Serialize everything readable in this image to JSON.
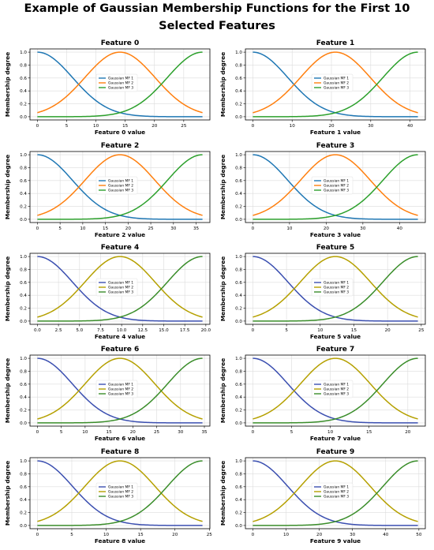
{
  "figure": {
    "title": "Example of Gaussian Membership Functions for the First 10 Selected Features"
  },
  "legend_labels": [
    "Gaussian MF 1",
    "Gaussian MF 2",
    "Gaussian MF 3"
  ],
  "chart_data": [
    {
      "type": "line",
      "title": "Feature 0",
      "xlabel": "Feature 0 value",
      "ylabel": "Membership degree",
      "xlim": [
        0,
        28.2
      ],
      "ylim": [
        0,
        1.0
      ],
      "xticks": [
        0,
        5,
        10,
        15,
        20,
        25
      ],
      "yticks": [
        0.0,
        0.2,
        0.4,
        0.6,
        0.8,
        1.0
      ],
      "grid": true,
      "legend": "center",
      "series": [
        {
          "name": "Gaussian MF 1",
          "mean": 0.0,
          "sigma": 6.0
        },
        {
          "name": "Gaussian MF 2",
          "mean": 14.1,
          "sigma": 6.0
        },
        {
          "name": "Gaussian MF 3",
          "mean": 28.2,
          "sigma": 6.0
        }
      ],
      "colors": [
        "#1f77b4",
        "#ff7f0e",
        "#2ca02c"
      ]
    },
    {
      "type": "line",
      "title": "Feature 1",
      "xlabel": "Feature 1 value",
      "ylabel": "Membership degree",
      "xlim": [
        0,
        42
      ],
      "ylim": [
        0,
        1.0
      ],
      "xticks": [
        0,
        10,
        20,
        30,
        40
      ],
      "yticks": [
        0.0,
        0.2,
        0.4,
        0.6,
        0.8,
        1.0
      ],
      "grid": true,
      "legend": "center",
      "series": [
        {
          "name": "Gaussian MF 1",
          "mean": 0.0,
          "sigma": 8.9
        },
        {
          "name": "Gaussian MF 2",
          "mean": 21.0,
          "sigma": 8.9
        },
        {
          "name": "Gaussian MF 3",
          "mean": 42.0,
          "sigma": 8.9
        }
      ],
      "colors": [
        "#1f77b4",
        "#ff7f0e",
        "#2ca02c"
      ]
    },
    {
      "type": "line",
      "title": "Feature 2",
      "xlabel": "Feature 2 value",
      "ylabel": "Membership degree",
      "xlim": [
        0,
        36.4
      ],
      "ylim": [
        0,
        1.0
      ],
      "xticks": [
        0,
        5,
        10,
        15,
        20,
        25,
        30,
        35
      ],
      "yticks": [
        0.0,
        0.2,
        0.4,
        0.6,
        0.8,
        1.0
      ],
      "grid": true,
      "legend": "center",
      "series": [
        {
          "name": "Gaussian MF 1",
          "mean": 0.0,
          "sigma": 7.7
        },
        {
          "name": "Gaussian MF 2",
          "mean": 18.2,
          "sigma": 7.7
        },
        {
          "name": "Gaussian MF 3",
          "mean": 36.4,
          "sigma": 7.7
        }
      ],
      "colors": [
        "#1f77b4",
        "#ff7f0e",
        "#2ca02c"
      ]
    },
    {
      "type": "line",
      "title": "Feature 3",
      "xlabel": "Feature 3 value",
      "ylabel": "Membership degree",
      "xlim": [
        0,
        45
      ],
      "ylim": [
        0,
        1.0
      ],
      "xticks": [
        0,
        10,
        20,
        30,
        40
      ],
      "yticks": [
        0.0,
        0.2,
        0.4,
        0.6,
        0.8,
        1.0
      ],
      "grid": true,
      "legend": "center",
      "series": [
        {
          "name": "Gaussian MF 1",
          "mean": 0.0,
          "sigma": 9.5
        },
        {
          "name": "Gaussian MF 2",
          "mean": 22.5,
          "sigma": 9.5
        },
        {
          "name": "Gaussian MF 3",
          "mean": 45.0,
          "sigma": 9.5
        }
      ],
      "colors": [
        "#1f77b4",
        "#ff7f0e",
        "#2ca02c"
      ]
    },
    {
      "type": "line",
      "title": "Feature 4",
      "xlabel": "Feature 4 value",
      "ylabel": "Membership degree",
      "xlim": [
        0,
        19.6
      ],
      "ylim": [
        0,
        1.0
      ],
      "xticks": [
        0.0,
        2.5,
        5.0,
        7.5,
        10.0,
        12.5,
        15.0,
        17.5,
        20.0
      ],
      "yticks": [
        0.0,
        0.2,
        0.4,
        0.6,
        0.8,
        1.0
      ],
      "grid": true,
      "legend": "center",
      "series": [
        {
          "name": "Gaussian MF 1",
          "mean": 0.0,
          "sigma": 4.15
        },
        {
          "name": "Gaussian MF 2",
          "mean": 9.8,
          "sigma": 4.15
        },
        {
          "name": "Gaussian MF 3",
          "mean": 19.6,
          "sigma": 4.15
        }
      ],
      "colors": [
        "#3b4fb0",
        "#b5a000",
        "#3a8d2a"
      ]
    },
    {
      "type": "line",
      "title": "Feature 5",
      "xlabel": "Feature 5 value",
      "ylabel": "Membership degree",
      "xlim": [
        0,
        24.5
      ],
      "ylim": [
        0,
        1.0
      ],
      "xticks": [
        0,
        5,
        10,
        15,
        20,
        25
      ],
      "yticks": [
        0.0,
        0.2,
        0.4,
        0.6,
        0.8,
        1.0
      ],
      "grid": true,
      "legend": "center",
      "series": [
        {
          "name": "Gaussian MF 1",
          "mean": 0.0,
          "sigma": 5.2
        },
        {
          "name": "Gaussian MF 2",
          "mean": 12.25,
          "sigma": 5.2
        },
        {
          "name": "Gaussian MF 3",
          "mean": 24.5,
          "sigma": 5.2
        }
      ],
      "colors": [
        "#3b4fb0",
        "#b5a000",
        "#3a8d2a"
      ]
    },
    {
      "type": "line",
      "title": "Feature 6",
      "xlabel": "Feature 6 value",
      "ylabel": "Membership degree",
      "xlim": [
        0,
        34.6
      ],
      "ylim": [
        0,
        1.0
      ],
      "xticks": [
        0,
        5,
        10,
        15,
        20,
        25,
        30,
        35
      ],
      "yticks": [
        0.0,
        0.2,
        0.4,
        0.6,
        0.8,
        1.0
      ],
      "grid": true,
      "legend": "center",
      "series": [
        {
          "name": "Gaussian MF 1",
          "mean": 0.0,
          "sigma": 7.3
        },
        {
          "name": "Gaussian MF 2",
          "mean": 17.3,
          "sigma": 7.3
        },
        {
          "name": "Gaussian MF 3",
          "mean": 34.6,
          "sigma": 7.3
        }
      ],
      "colors": [
        "#3b4fb0",
        "#b5a000",
        "#3a8d2a"
      ]
    },
    {
      "type": "line",
      "title": "Feature 7",
      "xlabel": "Feature 7 value",
      "ylabel": "Membership degree",
      "xlim": [
        0,
        21.3
      ],
      "ylim": [
        0,
        1.0
      ],
      "xticks": [
        0,
        5,
        10,
        15,
        20
      ],
      "yticks": [
        0.0,
        0.2,
        0.4,
        0.6,
        0.8,
        1.0
      ],
      "grid": true,
      "legend": "center",
      "series": [
        {
          "name": "Gaussian MF 1",
          "mean": 0.0,
          "sigma": 4.5
        },
        {
          "name": "Gaussian MF 2",
          "mean": 10.65,
          "sigma": 4.5
        },
        {
          "name": "Gaussian MF 3",
          "mean": 21.3,
          "sigma": 4.5
        }
      ],
      "colors": [
        "#3b4fb0",
        "#b5a000",
        "#3a8d2a"
      ]
    },
    {
      "type": "line",
      "title": "Feature 8",
      "xlabel": "Feature 8 value",
      "ylabel": "Membership degree",
      "xlim": [
        0,
        24
      ],
      "ylim": [
        0,
        1.0
      ],
      "xticks": [
        0,
        5,
        10,
        15,
        20,
        25
      ],
      "yticks": [
        0.0,
        0.2,
        0.4,
        0.6,
        0.8,
        1.0
      ],
      "grid": true,
      "legend": "center",
      "series": [
        {
          "name": "Gaussian MF 1",
          "mean": 0.0,
          "sigma": 5.1
        },
        {
          "name": "Gaussian MF 2",
          "mean": 12.0,
          "sigma": 5.1
        },
        {
          "name": "Gaussian MF 3",
          "mean": 24.0,
          "sigma": 5.1
        }
      ],
      "colors": [
        "#3b4fb0",
        "#b5a000",
        "#3a8d2a"
      ]
    },
    {
      "type": "line",
      "title": "Feature 9",
      "xlabel": "Feature 9 value",
      "ylabel": "Membership degree",
      "xlim": [
        0,
        49.7
      ],
      "ylim": [
        0,
        1.0
      ],
      "xticks": [
        0,
        10,
        20,
        30,
        40,
        50
      ],
      "yticks": [
        0.0,
        0.2,
        0.4,
        0.6,
        0.8,
        1.0
      ],
      "grid": true,
      "legend": "center",
      "series": [
        {
          "name": "Gaussian MF 1",
          "mean": 0.0,
          "sigma": 10.5
        },
        {
          "name": "Gaussian MF 2",
          "mean": 24.85,
          "sigma": 10.5
        },
        {
          "name": "Gaussian MF 3",
          "mean": 49.7,
          "sigma": 10.5
        }
      ],
      "colors": [
        "#3b4fb0",
        "#b5a000",
        "#3a8d2a"
      ]
    }
  ]
}
